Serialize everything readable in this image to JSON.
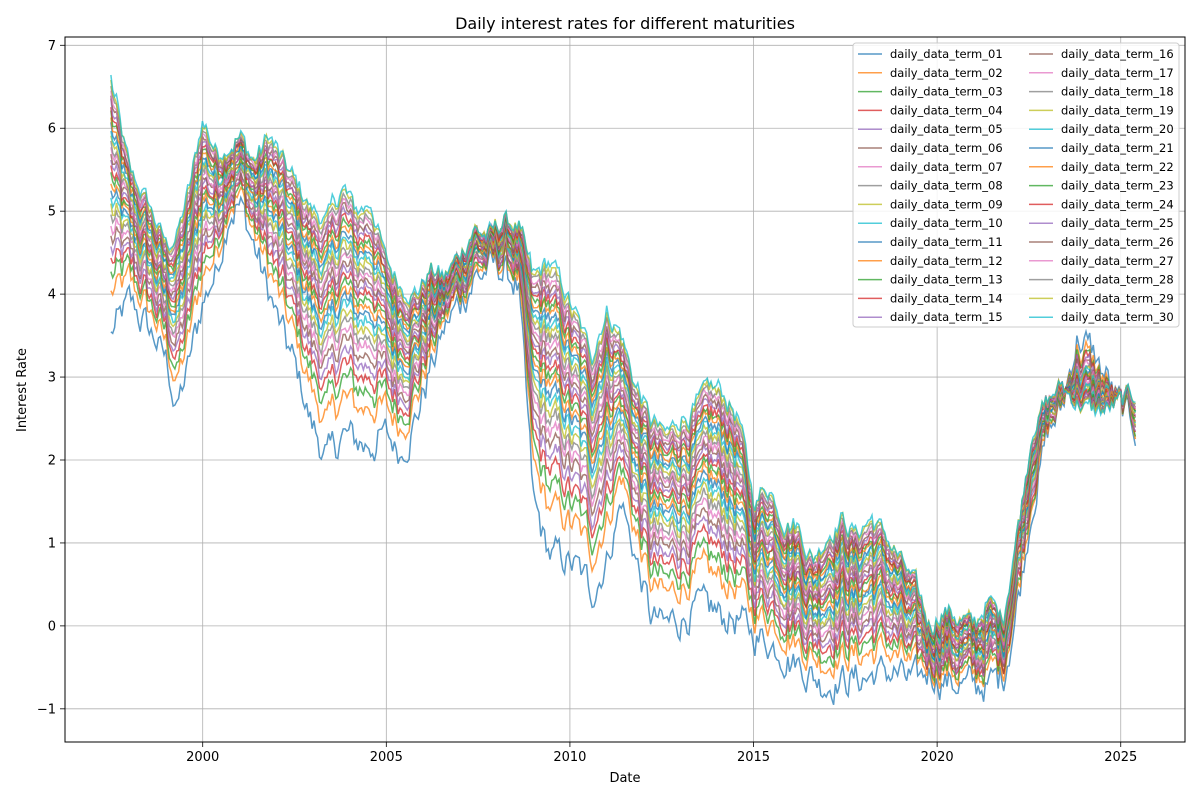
{
  "chart_data": {
    "type": "line",
    "title": "Daily interest rates for different maturities",
    "xlabel": "Date",
    "ylabel": "Interest Rate",
    "xlim": [
      1996.25,
      2026.75
    ],
    "ylim": [
      -1.4,
      7.1
    ],
    "x_ticks": [
      2000,
      2005,
      2010,
      2015,
      2020,
      2025
    ],
    "y_ticks": [
      -1,
      0,
      1,
      2,
      3,
      4,
      5,
      6,
      7
    ],
    "y_tick_labels": [
      "−1",
      "0",
      "1",
      "2",
      "3",
      "4",
      "5",
      "6",
      "7"
    ],
    "grid": true,
    "legend_position": "top-right",
    "legend_columns": 2,
    "x": [
      1997.5,
      1998.0,
      1998.5,
      1999.0,
      1999.3,
      1999.6,
      2000.0,
      2000.4,
      2000.7,
      2001.0,
      2001.4,
      2001.8,
      2002.2,
      2002.6,
      2003.0,
      2003.4,
      2003.8,
      2004.2,
      2004.6,
      2005.0,
      2005.4,
      2005.8,
      2006.2,
      2006.6,
      2007.0,
      2007.4,
      2007.8,
      2008.2,
      2008.6,
      2009.0,
      2009.4,
      2009.8,
      2010.2,
      2010.6,
      2011.0,
      2011.4,
      2011.8,
      2012.2,
      2012.6,
      2013.0,
      2013.4,
      2013.8,
      2014.2,
      2014.6,
      2015.0,
      2015.4,
      2015.8,
      2016.2,
      2016.6,
      2017.0,
      2017.4,
      2017.8,
      2018.2,
      2018.6,
      2019.0,
      2019.4,
      2019.8,
      2020.2,
      2020.6,
      2021.0,
      2021.4,
      2021.8,
      2022.2,
      2022.6,
      2023.0,
      2023.4,
      2023.8,
      2024.2,
      2024.6,
      2025.0,
      2025.4
    ],
    "short_series": [
      3.5,
      3.9,
      3.6,
      3.2,
      2.6,
      3.1,
      3.9,
      4.3,
      5.0,
      5.1,
      4.6,
      4.0,
      3.5,
      3.0,
      2.4,
      2.0,
      2.3,
      2.2,
      2.2,
      2.3,
      2.1,
      2.5,
      3.1,
      3.6,
      3.9,
      4.2,
      4.3,
      4.3,
      4.1,
      1.5,
      0.9,
      0.8,
      0.7,
      0.4,
      0.8,
      1.5,
      0.8,
      0.1,
      0.0,
      0.1,
      0.2,
      0.2,
      0.1,
      0.05,
      -0.1,
      -0.2,
      -0.3,
      -0.45,
      -0.6,
      -0.7,
      -0.65,
      -0.65,
      -0.6,
      -0.55,
      -0.6,
      -0.7,
      -0.55,
      -0.65,
      -0.7,
      -0.75,
      -0.7,
      -0.6,
      0.3,
      1.5,
      2.3,
      2.6,
      3.5,
      3.3,
      3.0,
      2.6,
      2.4
    ],
    "long_series": [
      6.6,
      5.5,
      5.1,
      4.6,
      4.7,
      5.2,
      6.1,
      5.7,
      5.8,
      5.9,
      5.6,
      5.9,
      5.6,
      5.3,
      5.0,
      4.9,
      5.3,
      5.0,
      5.1,
      4.4,
      4.1,
      4.0,
      4.3,
      4.2,
      4.5,
      4.8,
      4.7,
      4.9,
      4.8,
      4.2,
      4.4,
      4.1,
      3.7,
      3.3,
      3.8,
      3.5,
      2.9,
      2.5,
      2.3,
      2.5,
      2.6,
      2.9,
      2.8,
      2.5,
      1.5,
      1.7,
      1.3,
      1.2,
      0.8,
      1.1,
      1.3,
      1.1,
      1.3,
      1.1,
      0.8,
      0.5,
      0.0,
      0.2,
      0.1,
      0.0,
      0.3,
      0.1,
      1.2,
      2.4,
      2.7,
      2.9,
      2.7,
      2.6,
      2.6,
      2.7,
      2.8
    ],
    "series": [
      {
        "name": "daily_data_term_01",
        "color": "#1f77b4"
      },
      {
        "name": "daily_data_term_02",
        "color": "#ff7f0e"
      },
      {
        "name": "daily_data_term_03",
        "color": "#2ca02c"
      },
      {
        "name": "daily_data_term_04",
        "color": "#d62728"
      },
      {
        "name": "daily_data_term_05",
        "color": "#9467bd"
      },
      {
        "name": "daily_data_term_06",
        "color": "#8c564b"
      },
      {
        "name": "daily_data_term_07",
        "color": "#e377c2"
      },
      {
        "name": "daily_data_term_08",
        "color": "#7f7f7f"
      },
      {
        "name": "daily_data_term_09",
        "color": "#bcbd22"
      },
      {
        "name": "daily_data_term_10",
        "color": "#17becf"
      },
      {
        "name": "daily_data_term_11",
        "color": "#1f77b4"
      },
      {
        "name": "daily_data_term_12",
        "color": "#ff7f0e"
      },
      {
        "name": "daily_data_term_13",
        "color": "#2ca02c"
      },
      {
        "name": "daily_data_term_14",
        "color": "#d62728"
      },
      {
        "name": "daily_data_term_15",
        "color": "#9467bd"
      },
      {
        "name": "daily_data_term_16",
        "color": "#8c564b"
      },
      {
        "name": "daily_data_term_17",
        "color": "#e377c2"
      },
      {
        "name": "daily_data_term_18",
        "color": "#7f7f7f"
      },
      {
        "name": "daily_data_term_19",
        "color": "#bcbd22"
      },
      {
        "name": "daily_data_term_20",
        "color": "#17becf"
      },
      {
        "name": "daily_data_term_21",
        "color": "#1f77b4"
      },
      {
        "name": "daily_data_term_22",
        "color": "#ff7f0e"
      },
      {
        "name": "daily_data_term_23",
        "color": "#2ca02c"
      },
      {
        "name": "daily_data_term_24",
        "color": "#d62728"
      },
      {
        "name": "daily_data_term_25",
        "color": "#9467bd"
      },
      {
        "name": "daily_data_term_26",
        "color": "#8c564b"
      },
      {
        "name": "daily_data_term_27",
        "color": "#e377c2"
      },
      {
        "name": "daily_data_term_28",
        "color": "#7f7f7f"
      },
      {
        "name": "daily_data_term_29",
        "color": "#bcbd22"
      },
      {
        "name": "daily_data_term_30",
        "color": "#17becf"
      }
    ]
  }
}
